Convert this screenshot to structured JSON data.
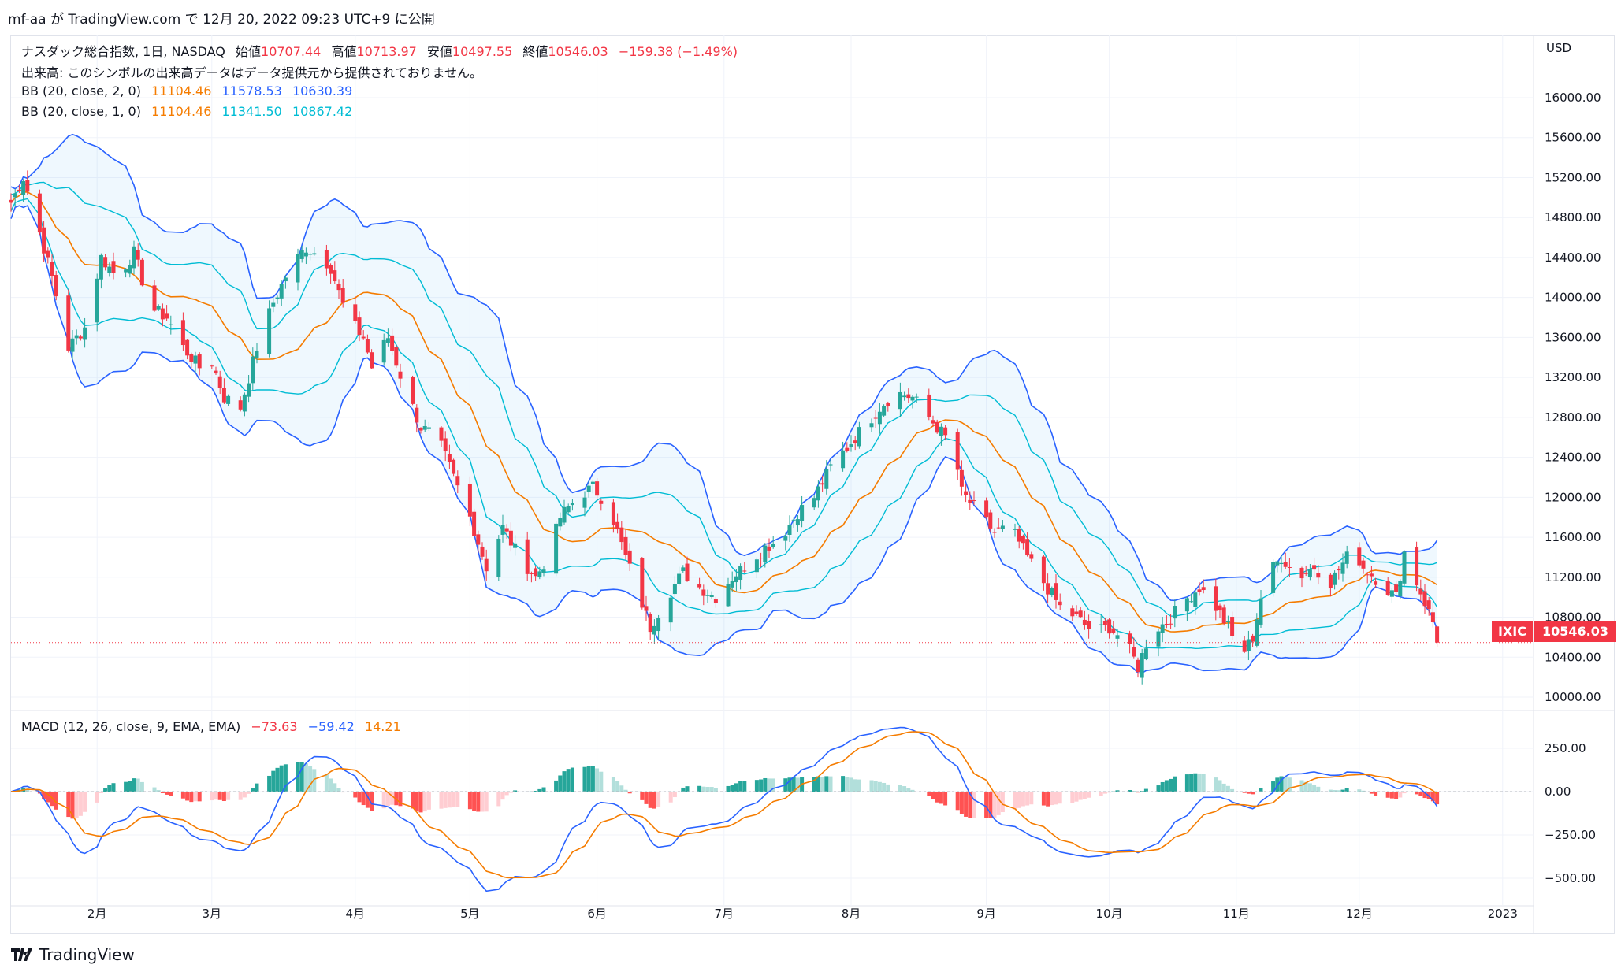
{
  "header": {
    "text": "mf-aa が TradingView.com で 12月 20, 2022 09:23 UTC+9 に公開"
  },
  "legend": {
    "title": "ナスダック総合指数, 1日, NASDAQ",
    "open_label": "始値",
    "open": "10707.44",
    "high_label": "高値",
    "high": "10713.97",
    "low_label": "安値",
    "low": "10497.55",
    "close_label": "終値",
    "close": "10546.03",
    "change": "−159.38 (−1.49%)",
    "volume_note": "出来高: このシンボルの出来高データはデータ提供元から提供されておりません。",
    "bb2_label": "BB (20, close, 2, 0)",
    "bb2_basis": "11104.46",
    "bb2_upper": "11578.53",
    "bb2_lower": "10630.39",
    "bb1_label": "BB (20, close, 1, 0)",
    "bb1_basis": "11104.46",
    "bb1_upper": "11341.50",
    "bb1_lower": "10867.42",
    "macd_label": "MACD (12, 26, close, 9, EMA, EMA)",
    "macd_hist": "−73.63",
    "macd_line": "−59.42",
    "macd_signal": "14.21"
  },
  "currency": "USD",
  "price_tag": {
    "symbol": "IXIC",
    "value": "10546.03"
  },
  "footer": {
    "brand": "TradingView"
  },
  "colors": {
    "up": "#26a69a",
    "down": "#f23645",
    "bb_outer": "#2962ff",
    "bb_inner": "#00bcd4",
    "basis": "#f57c00",
    "macd": "#2962ff",
    "signal": "#f57c00"
  },
  "chart_data": [
    {
      "type": "candlestick",
      "title": "ナスダック総合指数, 1日, NASDAQ",
      "ylim": [
        9800,
        16400
      ],
      "y_ticks": [
        10000,
        10400,
        10800,
        11200,
        11600,
        12000,
        12400,
        12800,
        13200,
        13600,
        14000,
        14400,
        14800,
        15200,
        15600,
        16000
      ],
      "y_tick_labels": [
        "10000.00",
        "10400.00",
        "10800.00",
        "11200.00",
        "11600.00",
        "12000.00",
        "12400.00",
        "12800.00",
        "13200.00",
        "13600.00",
        "14000.00",
        "14400.00",
        "14800.00",
        "15200.00",
        "15600.00",
        "16000.00"
      ],
      "x_tick_labels": [
        "2月",
        "3月",
        "4月",
        "5月",
        "6月",
        "7月",
        "8月",
        "9月",
        "10月",
        "11月",
        "12月",
        "2023"
      ],
      "x_tick_days": [
        21,
        49,
        84,
        112,
        143,
        174,
        205,
        238,
        268,
        299,
        329,
        364
      ],
      "last_close": 10546.03,
      "close_anchors": [
        [
          0,
          14950
        ],
        [
          3,
          15200
        ],
        [
          6,
          14800
        ],
        [
          10,
          14200
        ],
        [
          14,
          13500
        ],
        [
          18,
          13700
        ],
        [
          22,
          14400
        ],
        [
          26,
          14200
        ],
        [
          30,
          14450
        ],
        [
          34,
          13900
        ],
        [
          38,
          13800
        ],
        [
          42,
          13500
        ],
        [
          46,
          13300
        ],
        [
          49,
          13350
        ],
        [
          52,
          13000
        ],
        [
          56,
          12900
        ],
        [
          60,
          13500
        ],
        [
          64,
          13950
        ],
        [
          68,
          14300
        ],
        [
          72,
          14500
        ],
        [
          76,
          14400
        ],
        [
          78,
          14300
        ],
        [
          82,
          13800
        ],
        [
          86,
          13600
        ],
        [
          88,
          13300
        ],
        [
          92,
          13600
        ],
        [
          96,
          13100
        ],
        [
          100,
          12700
        ],
        [
          104,
          12600
        ],
        [
          108,
          12200
        ],
        [
          112,
          11800
        ],
        [
          116,
          11300
        ],
        [
          120,
          11700
        ],
        [
          124,
          11400
        ],
        [
          128,
          11200
        ],
        [
          131,
          11400
        ],
        [
          134,
          11800
        ],
        [
          138,
          12000
        ],
        [
          142,
          12100
        ],
        [
          146,
          11900
        ],
        [
          150,
          11400
        ],
        [
          153,
          11050
        ],
        [
          156,
          10700
        ],
        [
          160,
          11000
        ],
        [
          164,
          11250
        ],
        [
          168,
          11100
        ],
        [
          172,
          11000
        ],
        [
          176,
          11200
        ],
        [
          180,
          11350
        ],
        [
          184,
          11500
        ],
        [
          188,
          11600
        ],
        [
          192,
          11850
        ],
        [
          196,
          12000
        ],
        [
          200,
          12300
        ],
        [
          204,
          12500
        ],
        [
          208,
          12700
        ],
        [
          212,
          12900
        ],
        [
          216,
          13050
        ],
        [
          220,
          13000
        ],
        [
          224,
          12800
        ],
        [
          228,
          12600
        ],
        [
          230,
          12500
        ],
        [
          232,
          12050
        ],
        [
          236,
          11850
        ],
        [
          240,
          11650
        ],
        [
          244,
          11700
        ],
        [
          248,
          11400
        ],
        [
          252,
          11150
        ],
        [
          256,
          10900
        ],
        [
          260,
          10800
        ],
        [
          264,
          10650
        ],
        [
          268,
          10700
        ],
        [
          272,
          10550
        ],
        [
          275,
          10300
        ],
        [
          278,
          10650
        ],
        [
          282,
          10750
        ],
        [
          286,
          10950
        ],
        [
          290,
          11100
        ],
        [
          294,
          10900
        ],
        [
          297,
          10700
        ],
        [
          300,
          10400
        ],
        [
          303,
          10600
        ],
        [
          306,
          11200
        ],
        [
          310,
          11400
        ],
        [
          314,
          11200
        ],
        [
          318,
          11300
        ],
        [
          322,
          11150
        ],
        [
          326,
          11400
        ],
        [
          328,
          11450
        ],
        [
          330,
          11300
        ],
        [
          334,
          11150
        ],
        [
          338,
          11000
        ],
        [
          340,
          11450
        ],
        [
          342,
          11250
        ],
        [
          345,
          10950
        ],
        [
          347,
          10750
        ],
        [
          348,
          10546
        ]
      ]
    },
    {
      "type": "line",
      "title": "MACD (12, 26, close, 9, EMA, EMA)",
      "ylim": [
        -600,
        350
      ],
      "y_ticks": [
        250,
        0,
        -250,
        -500
      ],
      "y_tick_labels": [
        "250.00",
        "0.00",
        "−250.00",
        "−500.00"
      ],
      "series": [
        {
          "name": "MACD",
          "values_note": "computed from closes with EMA(12)−EMA(26)"
        },
        {
          "name": "Signal",
          "values_note": "EMA(9) of MACD"
        },
        {
          "name": "Histogram",
          "values_note": "MACD−Signal"
        }
      ]
    }
  ]
}
